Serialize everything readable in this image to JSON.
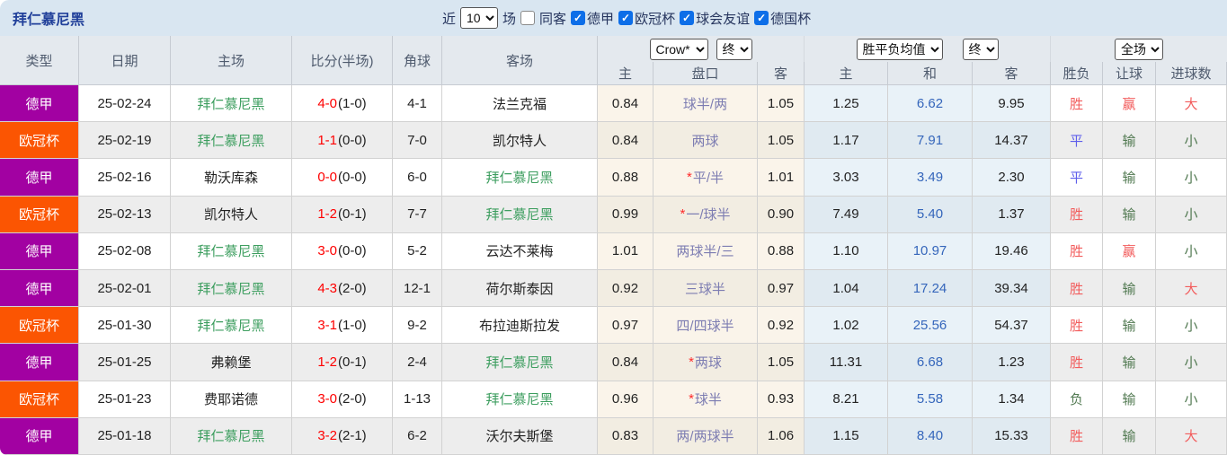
{
  "title": "拜仁慕尼黑",
  "filters": {
    "recent_label": "近",
    "recent_value": "10",
    "matches_label": "场",
    "same_away_label": "同客",
    "same_away_checked": false,
    "check_glyph": "✓",
    "leagues": [
      {
        "label": "德甲",
        "checked": true
      },
      {
        "label": "欧冠杯",
        "checked": true
      },
      {
        "label": "球会友谊",
        "checked": true
      },
      {
        "label": "德国杯",
        "checked": true
      }
    ]
  },
  "colors": {
    "league_bundesliga": "#a201a2",
    "league_ucl": "#fb5502",
    "team_green": "#3d9e5f",
    "score_red": "#fe0000",
    "handicap_purple": "#7d7db2",
    "avg_draw_blue": "#3566bb",
    "result_win_red": "#f25c5c",
    "result_draw_blue": "#5e5eeb",
    "result_lose_green": "#527a52",
    "checkbox_blue": "#0d6ee8"
  },
  "result_colors": {
    "胜": "#f25c5c",
    "平": "#5e5eeb",
    "负": "#527a52",
    "赢": "#f25c5c",
    "输": "#527a52",
    "大": "#f25c5c",
    "小": "#527a52"
  },
  "table": {
    "columns": [
      "类型",
      "日期",
      "主场",
      "比分(半场)",
      "角球",
      "客场"
    ],
    "odds_groups": [
      {
        "selects": [
          "Crow*",
          "终"
        ],
        "sub": [
          "主",
          "盘口",
          "客"
        ]
      },
      {
        "selects": [
          "胜平负均值",
          "终"
        ],
        "sub": [
          "主",
          "和",
          "客"
        ]
      },
      {
        "selects": [
          "全场"
        ],
        "sub": [
          "胜负",
          "让球",
          "进球数"
        ]
      }
    ],
    "rows": [
      {
        "league": "德甲",
        "league_color": "#a201a2",
        "date": "25-02-24",
        "home": "拜仁慕尼黑",
        "home_team": true,
        "score": "4-0",
        "half": "(1-0)",
        "corners": "4-1",
        "away": "法兰克福",
        "away_team": false,
        "crow_home": "0.84",
        "handicap": "球半/两",
        "handicap_star": false,
        "crow_away": "1.05",
        "avg_home": "1.25",
        "avg_draw": "6.62",
        "avg_away": "9.95",
        "res_wdl": "胜",
        "res_handicap": "赢",
        "res_goals": "大"
      },
      {
        "league": "欧冠杯",
        "league_color": "#fb5502",
        "date": "25-02-19",
        "home": "拜仁慕尼黑",
        "home_team": true,
        "score": "1-1",
        "half": "(0-0)",
        "corners": "7-0",
        "away": "凯尔特人",
        "away_team": false,
        "crow_home": "0.84",
        "handicap": "两球",
        "handicap_star": false,
        "crow_away": "1.05",
        "avg_home": "1.17",
        "avg_draw": "7.91",
        "avg_away": "14.37",
        "res_wdl": "平",
        "res_handicap": "输",
        "res_goals": "小"
      },
      {
        "league": "德甲",
        "league_color": "#a201a2",
        "date": "25-02-16",
        "home": "勒沃库森",
        "home_team": false,
        "score": "0-0",
        "half": "(0-0)",
        "corners": "6-0",
        "away": "拜仁慕尼黑",
        "away_team": true,
        "crow_home": "0.88",
        "handicap": "平/半",
        "handicap_star": true,
        "crow_away": "1.01",
        "avg_home": "3.03",
        "avg_draw": "3.49",
        "avg_away": "2.30",
        "res_wdl": "平",
        "res_handicap": "输",
        "res_goals": "小"
      },
      {
        "league": "欧冠杯",
        "league_color": "#fb5502",
        "date": "25-02-13",
        "home": "凯尔特人",
        "home_team": false,
        "score": "1-2",
        "half": "(0-1)",
        "corners": "7-7",
        "away": "拜仁慕尼黑",
        "away_team": true,
        "crow_home": "0.99",
        "handicap": "一/球半",
        "handicap_star": true,
        "crow_away": "0.90",
        "avg_home": "7.49",
        "avg_draw": "5.40",
        "avg_away": "1.37",
        "res_wdl": "胜",
        "res_handicap": "输",
        "res_goals": "小"
      },
      {
        "league": "德甲",
        "league_color": "#a201a2",
        "date": "25-02-08",
        "home": "拜仁慕尼黑",
        "home_team": true,
        "score": "3-0",
        "half": "(0-0)",
        "corners": "5-2",
        "away": "云达不莱梅",
        "away_team": false,
        "crow_home": "1.01",
        "handicap": "两球半/三",
        "handicap_star": false,
        "crow_away": "0.88",
        "avg_home": "1.10",
        "avg_draw": "10.97",
        "avg_away": "19.46",
        "res_wdl": "胜",
        "res_handicap": "赢",
        "res_goals": "小"
      },
      {
        "league": "德甲",
        "league_color": "#a201a2",
        "date": "25-02-01",
        "home": "拜仁慕尼黑",
        "home_team": true,
        "score": "4-3",
        "half": "(2-0)",
        "corners": "12-1",
        "away": "荷尔斯泰因",
        "away_team": false,
        "crow_home": "0.92",
        "handicap": "三球半",
        "handicap_star": false,
        "crow_away": "0.97",
        "avg_home": "1.04",
        "avg_draw": "17.24",
        "avg_away": "39.34",
        "res_wdl": "胜",
        "res_handicap": "输",
        "res_goals": "大"
      },
      {
        "league": "欧冠杯",
        "league_color": "#fb5502",
        "date": "25-01-30",
        "home": "拜仁慕尼黑",
        "home_team": true,
        "score": "3-1",
        "half": "(1-0)",
        "corners": "9-2",
        "away": "布拉迪斯拉发",
        "away_team": false,
        "crow_home": "0.97",
        "handicap": "四/四球半",
        "handicap_star": false,
        "crow_away": "0.92",
        "avg_home": "1.02",
        "avg_draw": "25.56",
        "avg_away": "54.37",
        "res_wdl": "胜",
        "res_handicap": "输",
        "res_goals": "小"
      },
      {
        "league": "德甲",
        "league_color": "#a201a2",
        "date": "25-01-25",
        "home": "弗赖堡",
        "home_team": false,
        "score": "1-2",
        "half": "(0-1)",
        "corners": "2-4",
        "away": "拜仁慕尼黑",
        "away_team": true,
        "crow_home": "0.84",
        "handicap": "两球",
        "handicap_star": true,
        "crow_away": "1.05",
        "avg_home": "11.31",
        "avg_draw": "6.68",
        "avg_away": "1.23",
        "res_wdl": "胜",
        "res_handicap": "输",
        "res_goals": "小"
      },
      {
        "league": "欧冠杯",
        "league_color": "#fb5502",
        "date": "25-01-23",
        "home": "费耶诺德",
        "home_team": false,
        "score": "3-0",
        "half": "(2-0)",
        "corners": "1-13",
        "away": "拜仁慕尼黑",
        "away_team": true,
        "crow_home": "0.96",
        "handicap": "球半",
        "handicap_star": true,
        "crow_away": "0.93",
        "avg_home": "8.21",
        "avg_draw": "5.58",
        "avg_away": "1.34",
        "res_wdl": "负",
        "res_handicap": "输",
        "res_goals": "小"
      },
      {
        "league": "德甲",
        "league_color": "#a201a2",
        "date": "25-01-18",
        "home": "拜仁慕尼黑",
        "home_team": true,
        "score": "3-2",
        "half": "(2-1)",
        "corners": "6-2",
        "away": "沃尔夫斯堡",
        "away_team": false,
        "crow_home": "0.83",
        "handicap": "两/两球半",
        "handicap_star": false,
        "crow_away": "1.06",
        "avg_home": "1.15",
        "avg_draw": "8.40",
        "avg_away": "15.33",
        "res_wdl": "胜",
        "res_handicap": "输",
        "res_goals": "大"
      }
    ]
  }
}
